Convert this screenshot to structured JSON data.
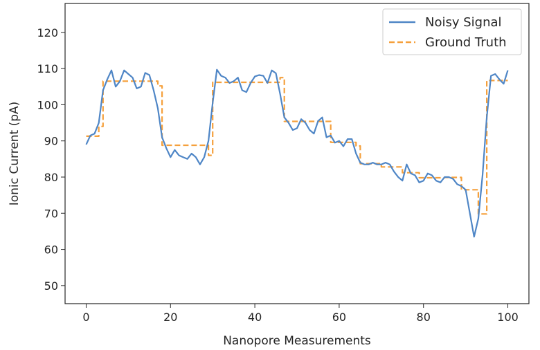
{
  "chart_data": {
    "type": "line",
    "xlabel": "Nanopore Measurements",
    "ylabel": "Ionic Current (pA)",
    "xlim": [
      -5,
      105
    ],
    "ylim": [
      45,
      128
    ],
    "x_ticks": [
      0,
      20,
      40,
      60,
      80,
      100
    ],
    "y_ticks": [
      50,
      60,
      70,
      80,
      90,
      100,
      110,
      120
    ],
    "grid": false,
    "legend_position": "top-right",
    "series": [
      {
        "name": "Noisy Signal",
        "style": "solid",
        "color": "#4f86c6",
        "x": [
          0,
          1,
          2,
          3,
          4,
          5,
          6,
          7,
          8,
          9,
          10,
          11,
          12,
          13,
          14,
          15,
          16,
          17,
          18,
          19,
          20,
          21,
          22,
          23,
          24,
          25,
          26,
          27,
          28,
          29,
          30,
          31,
          32,
          33,
          34,
          35,
          36,
          37,
          38,
          39,
          40,
          41,
          42,
          43,
          44,
          45,
          46,
          47,
          48,
          49,
          50,
          51,
          52,
          53,
          54,
          55,
          56,
          57,
          58,
          59,
          60,
          61,
          62,
          63,
          64,
          65,
          66,
          67,
          68,
          69,
          70,
          71,
          72,
          73,
          74,
          75,
          76,
          77,
          78,
          79,
          80,
          81,
          82,
          83,
          84,
          85,
          86,
          87,
          88,
          89,
          90,
          91,
          92,
          93,
          94,
          95,
          96,
          97,
          98,
          99,
          100
        ],
        "y": [
          89,
          91.5,
          92,
          95,
          104,
          107,
          109.5,
          105,
          106.5,
          109.5,
          108.5,
          107.5,
          104.5,
          105,
          108.8,
          108.2,
          104,
          99,
          91,
          88,
          85.5,
          87.5,
          86,
          85.5,
          85,
          86.5,
          85.5,
          83.5,
          85.5,
          90,
          100.5,
          109.7,
          108,
          107.5,
          106,
          106.5,
          107.5,
          104,
          103.5,
          106,
          107.8,
          108.2,
          108,
          106,
          109.5,
          108.7,
          103,
          96.5,
          95,
          93,
          93.5,
          96,
          95,
          93,
          92,
          95.5,
          96.5,
          91,
          91.5,
          89.5,
          90,
          88.5,
          90.5,
          90.5,
          86.5,
          84,
          83.5,
          83.5,
          84,
          83.5,
          83.5,
          84,
          83.5,
          81.5,
          80,
          79,
          83.5,
          81,
          80.5,
          78.5,
          79,
          81,
          80.5,
          79,
          78.5,
          80,
          80,
          79.5,
          78,
          77.5,
          76.5,
          70,
          63.5,
          68.5,
          80.5,
          96.5,
          108,
          108.5,
          107,
          105.8,
          109.5
        ]
      },
      {
        "name": "Ground Truth",
        "style": "dashed",
        "color": "#f5a03c",
        "x": [
          0,
          3,
          3,
          4,
          4,
          17,
          17,
          18,
          18,
          29,
          29,
          30,
          30,
          46,
          46,
          47,
          47,
          58,
          58,
          64,
          64,
          65,
          65,
          70,
          70,
          75,
          75,
          79,
          79,
          85,
          85,
          89,
          89,
          93,
          93,
          95,
          95,
          100
        ],
        "y": [
          91.3,
          91.3,
          94,
          94,
          106.5,
          106.5,
          105.2,
          105.2,
          88.8,
          88.8,
          86,
          86,
          106.2,
          106.2,
          107.5,
          107.5,
          95.4,
          95.4,
          89.6,
          89.6,
          88.6,
          88.6,
          83.7,
          83.7,
          82.8,
          82.8,
          81.2,
          81.2,
          79.8,
          79.8,
          79.9,
          79.9,
          76.5,
          76.5,
          69.8,
          69.8,
          106.7,
          106.7
        ]
      }
    ]
  }
}
